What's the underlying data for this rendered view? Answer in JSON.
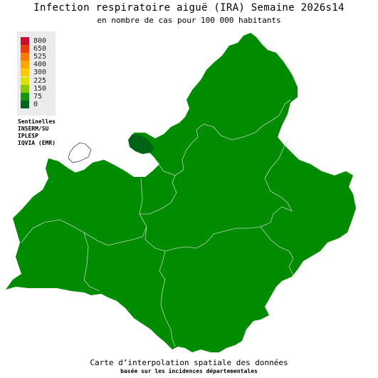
{
  "header": {
    "title": "Infection respiratoire aiguë (IRA) Semaine 2026s14",
    "subtitle": "en nombre de cas pour 100 000 habitants"
  },
  "legend": {
    "items": [
      {
        "label": "800",
        "color": "#c8102e"
      },
      {
        "label": "650",
        "color": "#f03c0f"
      },
      {
        "label": "525",
        "color": "#ff7a00"
      },
      {
        "label": "400",
        "color": "#ffa500"
      },
      {
        "label": "300",
        "color": "#ffc800"
      },
      {
        "label": "225",
        "color": "#e1e100"
      },
      {
        "label": "150",
        "color": "#8cc800"
      },
      {
        "label": "75",
        "color": "#149614"
      },
      {
        "label": "0",
        "color": "#00641e"
      }
    ]
  },
  "sources": {
    "heading": "Sentinelles",
    "lines": [
      "INSERM/SU",
      "IPLESP",
      "IQVIA (EMR)"
    ]
  },
  "map": {
    "region_color": "#008c00",
    "dark_enclave_color": "#006414",
    "border_color": "#b9d7b9",
    "outline_color": "#555555"
  },
  "footer": {
    "line1": "Carte d’interpolation spatiale des données",
    "line2": "basée sur les incidences départementales"
  }
}
